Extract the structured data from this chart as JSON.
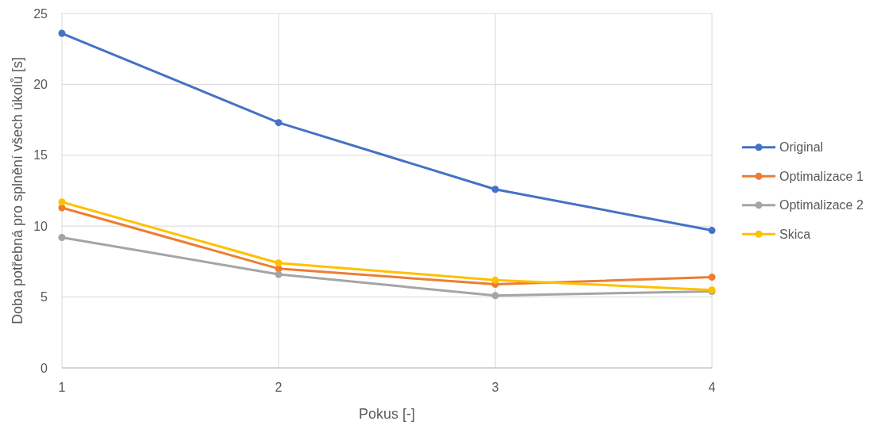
{
  "chart_data": {
    "type": "line",
    "xlabel": "Pokus [-]",
    "ylabel": "Doba potřebná pro splnění všech úkolů [s]",
    "x": [
      1,
      2,
      3,
      4
    ],
    "xlim": [
      1,
      4
    ],
    "xticks": [
      1,
      2,
      3,
      4
    ],
    "ylim": [
      0,
      25
    ],
    "yticks": [
      0,
      5,
      10,
      15,
      20,
      25
    ],
    "grid": true,
    "legend": "right",
    "marker": "circle",
    "line_style": "solid",
    "series": [
      {
        "name": "Original",
        "color": "#4472c4",
        "values": [
          23.6,
          17.3,
          12.6,
          9.7
        ]
      },
      {
        "name": "Optimalizace 1",
        "color": "#ed7d31",
        "values": [
          11.3,
          7.0,
          5.9,
          6.4
        ]
      },
      {
        "name": "Optimalizace 2",
        "color": "#a5a5a5",
        "values": [
          9.2,
          6.6,
          5.1,
          5.4
        ]
      },
      {
        "name": "Skica",
        "color": "#ffc000",
        "values": [
          11.7,
          7.4,
          6.2,
          5.5
        ]
      }
    ]
  }
}
